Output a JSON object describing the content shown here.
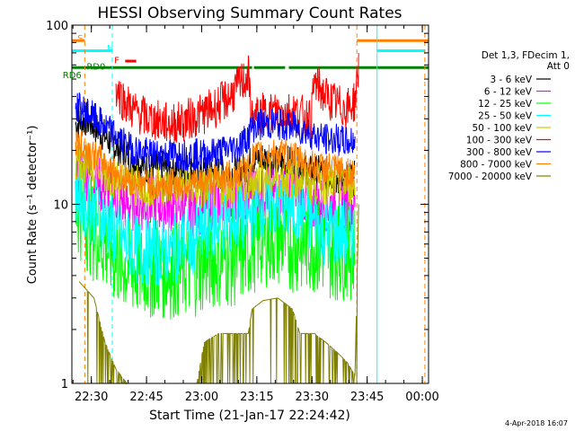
{
  "chart_data": {
    "type": "line",
    "title": "HESSI Observing Summary Count Rates",
    "xlabel": "Start Time (21-Jan-17 22:24:42)",
    "ylabel": "Count Rate (s⁻¹ detector⁻¹)",
    "y_scale": "log",
    "ylim": [
      1,
      100
    ],
    "yticks": [
      {
        "value": 1,
        "label": "1"
      },
      {
        "value": 10,
        "label": "10"
      },
      {
        "value": 100,
        "label": "100"
      }
    ],
    "x_unit": "minutes from 22:24:42",
    "xlim": [
      0,
      97
    ],
    "xticks": [
      {
        "value": 5.3,
        "label": "22:30"
      },
      {
        "value": 20.3,
        "label": "22:45"
      },
      {
        "value": 35.3,
        "label": "23:00"
      },
      {
        "value": 50.3,
        "label": "23:15"
      },
      {
        "value": 65.3,
        "label": "23:30"
      },
      {
        "value": 80.3,
        "label": "23:45"
      },
      {
        "value": 95.3,
        "label": "00:00"
      }
    ],
    "legend": {
      "placement": "right",
      "header": [
        "Det 1,3, FDecim 1,",
        "Att 0"
      ]
    },
    "series": [
      {
        "name": "3 - 6 keV",
        "color": "#000000",
        "noise": 0.1,
        "points": [
          [
            1,
            28
          ],
          [
            4,
            30
          ],
          [
            9,
            24
          ],
          [
            12,
            21
          ],
          [
            15,
            19
          ],
          [
            18,
            17
          ],
          [
            21,
            16
          ],
          [
            24,
            16
          ],
          [
            27,
            16
          ],
          [
            30,
            16
          ],
          [
            34,
            15
          ],
          [
            37,
            15
          ],
          [
            41,
            15
          ],
          [
            45,
            15
          ],
          [
            48,
            16
          ],
          [
            49,
            18
          ],
          [
            52,
            18
          ],
          [
            56,
            17
          ],
          [
            60,
            17
          ],
          [
            63,
            16
          ],
          [
            65,
            15
          ],
          [
            66,
            15
          ],
          [
            69,
            15
          ],
          [
            72,
            14
          ],
          [
            75,
            14
          ],
          [
            77,
            14
          ]
        ]
      },
      {
        "name": "6 - 12 keV",
        "color": "#ff00ff",
        "noise": 0.16,
        "points": [
          [
            1,
            16
          ],
          [
            4,
            15
          ],
          [
            9,
            12
          ],
          [
            12,
            11
          ],
          [
            15,
            10
          ],
          [
            18,
            10
          ],
          [
            21,
            10
          ],
          [
            24,
            10
          ],
          [
            27,
            10
          ],
          [
            30,
            10
          ],
          [
            34,
            9.5
          ],
          [
            37,
            10
          ],
          [
            41,
            11
          ],
          [
            45,
            11
          ],
          [
            48,
            11
          ],
          [
            49,
            12
          ],
          [
            52,
            12
          ],
          [
            56,
            11
          ],
          [
            60,
            12
          ],
          [
            63,
            11
          ],
          [
            65,
            10
          ],
          [
            66,
            10
          ],
          [
            69,
            10
          ],
          [
            72,
            10
          ],
          [
            75,
            10
          ],
          [
            77,
            10
          ]
        ]
      },
      {
        "name": "12 - 25 keV",
        "color": "#00ff00",
        "noise": 0.28,
        "points": [
          [
            1,
            10
          ],
          [
            4,
            8
          ],
          [
            6,
            7
          ],
          [
            9,
            6
          ],
          [
            12,
            5
          ],
          [
            15,
            4.5
          ],
          [
            18,
            4.3
          ],
          [
            21,
            4.3
          ],
          [
            24,
            4.3
          ],
          [
            27,
            4.3
          ],
          [
            30,
            4.3
          ],
          [
            34,
            4.5
          ],
          [
            37,
            4.8
          ],
          [
            41,
            5
          ],
          [
            45,
            5
          ],
          [
            48,
            5.5
          ],
          [
            49,
            6
          ],
          [
            52,
            6.5
          ],
          [
            56,
            6.5
          ],
          [
            60,
            6
          ],
          [
            63,
            6
          ],
          [
            65,
            6
          ],
          [
            66,
            6
          ],
          [
            69,
            5.5
          ],
          [
            72,
            5.5
          ],
          [
            75,
            5.5
          ],
          [
            77,
            5.5
          ]
        ]
      },
      {
        "name": "25 - 50 keV",
        "color": "#00ffff",
        "noise": 0.2,
        "points": [
          [
            1,
            12
          ],
          [
            4,
            10
          ],
          [
            6,
            9
          ],
          [
            9,
            8
          ],
          [
            12,
            7
          ],
          [
            15,
            6
          ],
          [
            18,
            5.5
          ],
          [
            21,
            5.5
          ],
          [
            24,
            5.5
          ],
          [
            27,
            5.5
          ],
          [
            30,
            6
          ],
          [
            34,
            6.5
          ],
          [
            37,
            7.5
          ],
          [
            41,
            8
          ],
          [
            45,
            8.5
          ],
          [
            48,
            8.5
          ],
          [
            49,
            9
          ],
          [
            52,
            10
          ],
          [
            56,
            10
          ],
          [
            60,
            9.5
          ],
          [
            63,
            9
          ],
          [
            65,
            8
          ],
          [
            66,
            8
          ],
          [
            69,
            7
          ],
          [
            72,
            7
          ],
          [
            75,
            6.8
          ],
          [
            77,
            6.8
          ]
        ]
      },
      {
        "name": "50 - 100 keV",
        "color": "#cccc00",
        "noise": 0.12,
        "points": [
          [
            1,
            18
          ],
          [
            4,
            17
          ],
          [
            9,
            15
          ],
          [
            12,
            14
          ],
          [
            15,
            13
          ],
          [
            18,
            12.5
          ],
          [
            21,
            12.5
          ],
          [
            24,
            12.5
          ],
          [
            27,
            12.5
          ],
          [
            30,
            12.5
          ],
          [
            34,
            12
          ],
          [
            37,
            12
          ],
          [
            41,
            12.5
          ],
          [
            45,
            13
          ],
          [
            48,
            13
          ],
          [
            49,
            14
          ],
          [
            52,
            14
          ],
          [
            56,
            14
          ],
          [
            60,
            14
          ],
          [
            63,
            14
          ],
          [
            65,
            13
          ],
          [
            66,
            13
          ],
          [
            69,
            13
          ],
          [
            72,
            13
          ],
          [
            75,
            13
          ],
          [
            77,
            13
          ]
        ]
      },
      {
        "name": "100 - 300 keV",
        "color": "#ff0000",
        "noise": 0.12,
        "points": [
          [
            12,
            45
          ],
          [
            14,
            38
          ],
          [
            17,
            33
          ],
          [
            21,
            30
          ],
          [
            24,
            29
          ],
          [
            27,
            28
          ],
          [
            30,
            29
          ],
          [
            34,
            31
          ],
          [
            37,
            33
          ],
          [
            40,
            36
          ],
          [
            43,
            40
          ],
          [
            45,
            45
          ],
          [
            48,
            52
          ],
          [
            49,
            30
          ],
          [
            52,
            32
          ],
          [
            56,
            33
          ],
          [
            60,
            33
          ],
          [
            63,
            31
          ],
          [
            65,
            30
          ],
          [
            66,
            48
          ],
          [
            69,
            40
          ],
          [
            72,
            36
          ],
          [
            75,
            34
          ],
          [
            77,
            38
          ],
          [
            78,
            60
          ]
        ]
      },
      {
        "name": "300 - 800 keV",
        "color": "#0000ff",
        "noise": 0.09,
        "points": [
          [
            1,
            35
          ],
          [
            4,
            33
          ],
          [
            9,
            27
          ],
          [
            12,
            24
          ],
          [
            15,
            21
          ],
          [
            18,
            20
          ],
          [
            21,
            19
          ],
          [
            24,
            19
          ],
          [
            27,
            19
          ],
          [
            30,
            19
          ],
          [
            34,
            19
          ],
          [
            37,
            19
          ],
          [
            41,
            20
          ],
          [
            45,
            21
          ],
          [
            48,
            24
          ],
          [
            49,
            27
          ],
          [
            52,
            28
          ],
          [
            56,
            28
          ],
          [
            60,
            27
          ],
          [
            63,
            26
          ],
          [
            65,
            25
          ],
          [
            66,
            24
          ],
          [
            69,
            23
          ],
          [
            72,
            23
          ],
          [
            75,
            22
          ],
          [
            77,
            23
          ]
        ]
      },
      {
        "name": "800 - 7000 keV",
        "color": "#ff8000",
        "noise": 0.09,
        "points": [
          [
            1,
            22
          ],
          [
            4,
            20
          ],
          [
            9,
            17
          ],
          [
            12,
            15
          ],
          [
            15,
            14
          ],
          [
            18,
            13
          ],
          [
            21,
            13
          ],
          [
            24,
            13
          ],
          [
            27,
            13
          ],
          [
            30,
            13
          ],
          [
            34,
            13
          ],
          [
            37,
            13.5
          ],
          [
            41,
            14
          ],
          [
            45,
            15
          ],
          [
            48,
            16
          ],
          [
            49,
            18
          ],
          [
            52,
            19
          ],
          [
            56,
            19
          ],
          [
            60,
            18.5
          ],
          [
            63,
            17.5
          ],
          [
            65,
            16.5
          ],
          [
            66,
            16
          ],
          [
            69,
            16
          ],
          [
            72,
            15.5
          ],
          [
            75,
            15
          ],
          [
            77,
            15
          ]
        ]
      },
      {
        "name": "7000 - 20000 keV",
        "color": "#808000",
        "noise": 0,
        "points": [
          [
            2,
            3.7
          ],
          [
            6,
            3
          ],
          [
            9,
            1.7
          ],
          [
            12,
            1.2
          ],
          [
            15,
            1
          ],
          [
            34,
            1
          ],
          [
            36,
            1.7
          ],
          [
            40,
            1.9
          ],
          [
            42,
            1.9
          ],
          [
            45,
            1.9
          ],
          [
            48,
            1.9
          ],
          [
            49,
            2.6
          ],
          [
            52,
            2.9
          ],
          [
            56,
            3
          ],
          [
            60,
            2.6
          ],
          [
            62,
            1.9
          ],
          [
            66,
            1.9
          ],
          [
            69,
            1.7
          ],
          [
            72,
            1.5
          ],
          [
            75,
            1.3
          ],
          [
            77,
            1.1
          ],
          [
            78,
            10
          ]
        ]
      }
    ],
    "bar_labels": [
      {
        "label": "S",
        "color": "#ff8000",
        "x": 1.5,
        "y": 85
      },
      {
        "label": "N",
        "color": "#00ffff",
        "x": 9.5,
        "y": 75
      },
      {
        "label": "F",
        "color": "#ff0000",
        "x": 11.5,
        "y": 64
      },
      {
        "label": "RD0",
        "color": "#008000",
        "x": 4,
        "y": 59
      },
      {
        "label": "RD6",
        "color": "#008000",
        "x": -2.5,
        "y": 53
      }
    ],
    "flag_bars": [
      {
        "name": "SAA",
        "color": "#ff8000",
        "y": 82,
        "intervals": [
          [
            0,
            3.5
          ],
          [
            77.5,
            97
          ]
        ]
      },
      {
        "name": "Night",
        "color": "#00ffff",
        "y": 72,
        "intervals": [
          [
            0,
            11
          ],
          [
            83,
            96
          ]
        ]
      },
      {
        "name": "Flare",
        "color": "#ff0000",
        "y": 63,
        "intervals": [
          [
            14.5,
            17.5
          ]
        ]
      },
      {
        "name": "Decimation",
        "color": "#008000",
        "y": 58,
        "intervals": [
          [
            0,
            49
          ],
          [
            49.5,
            58
          ],
          [
            59,
            97
          ]
        ]
      }
    ],
    "vertical_lines": [
      {
        "x": 0,
        "color": "#00ffff",
        "style": "solid"
      },
      {
        "x": 3.5,
        "color": "#ff8000",
        "style": "dashed"
      },
      {
        "x": 11,
        "color": "#00ffff",
        "style": "dashed"
      },
      {
        "x": 77.5,
        "color": "#ff8000",
        "style": "dashed"
      },
      {
        "x": 83,
        "color": "#00ffff",
        "style": "solid"
      },
      {
        "x": 96,
        "color": "#ff8000",
        "style": "dashed"
      }
    ],
    "footer_date": "4-Apr-2018 16:07"
  }
}
